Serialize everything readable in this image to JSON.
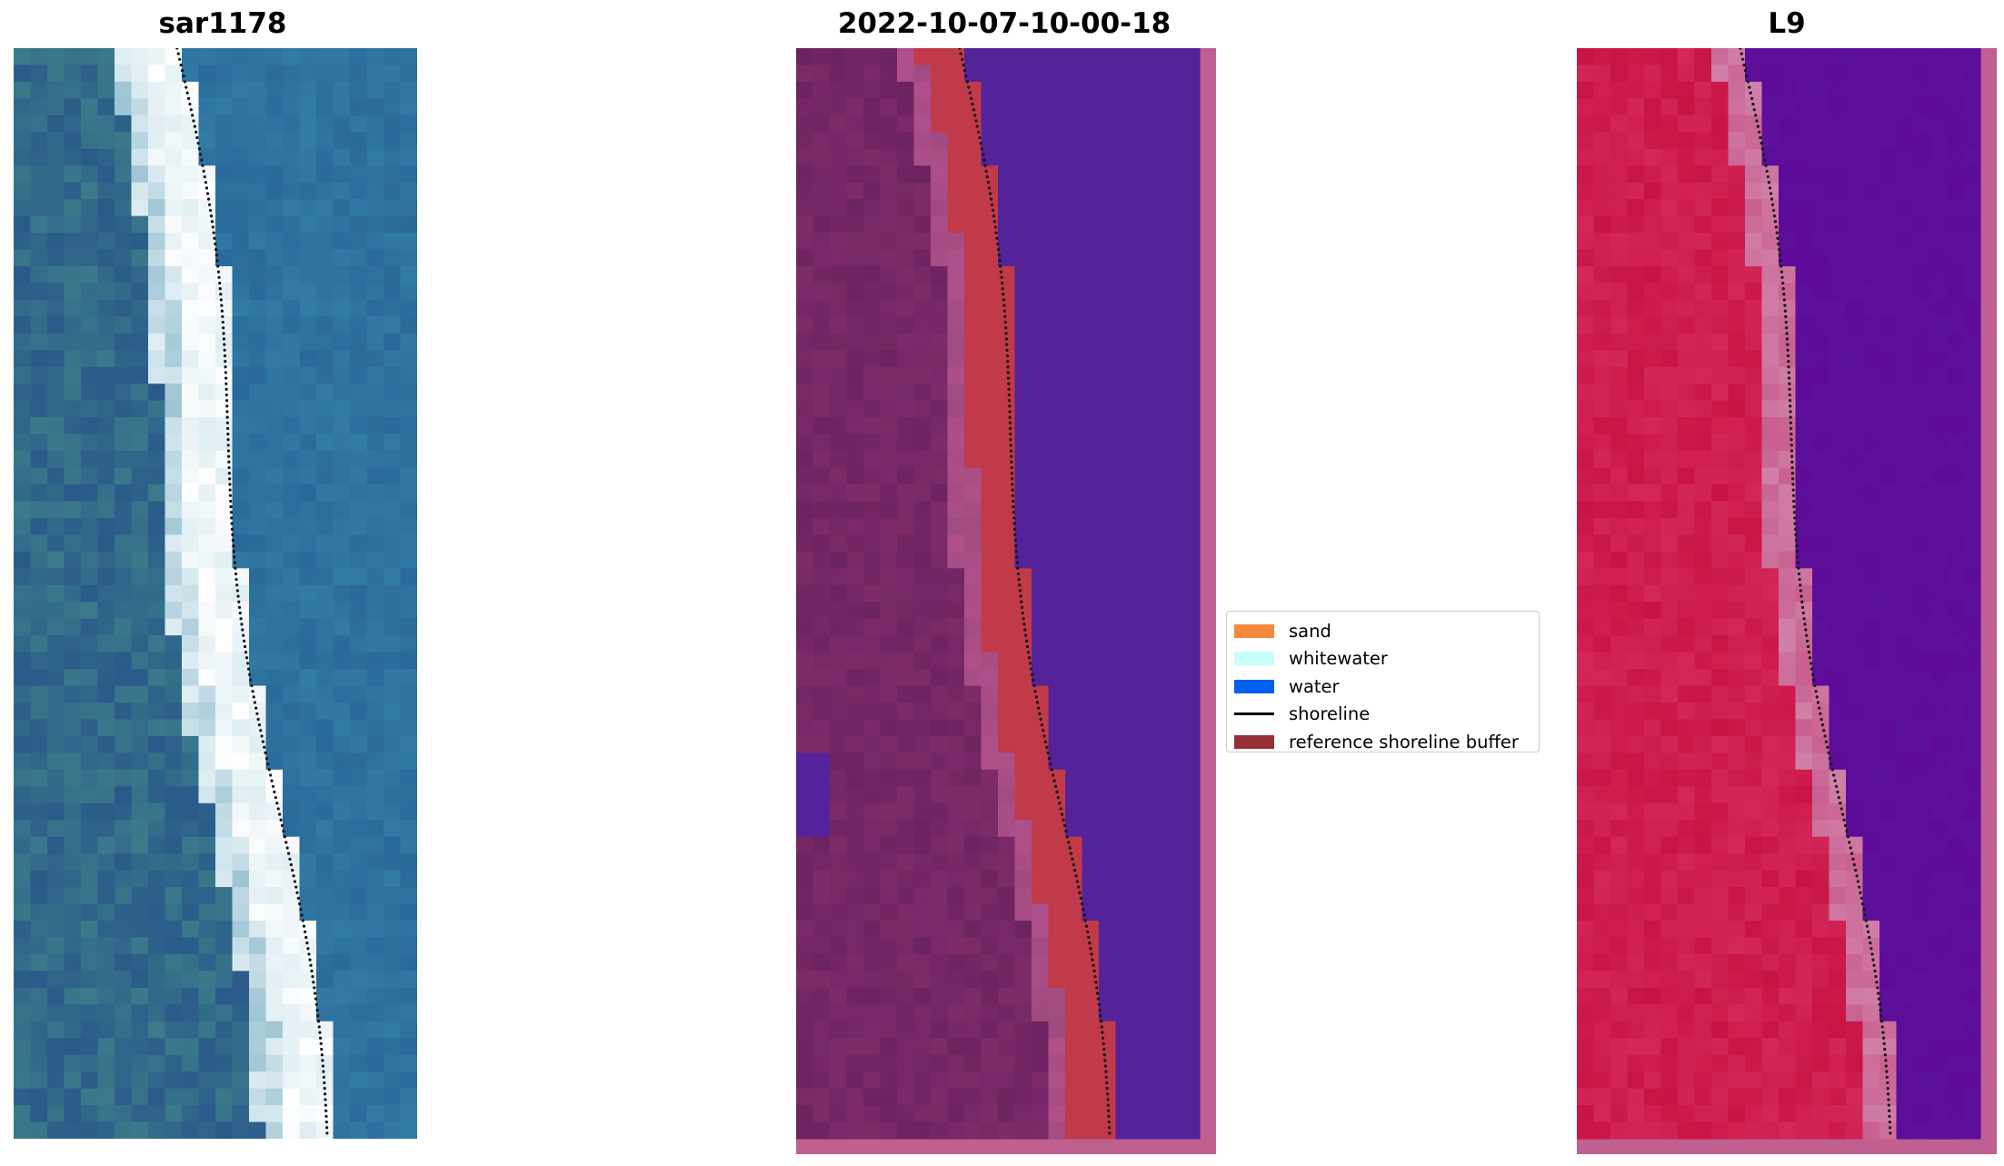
{
  "panels": [
    {
      "id": "rgb",
      "title": "sar1178"
    },
    {
      "id": "classified",
      "title": "2022-10-07-10-00-18"
    },
    {
      "id": "index",
      "title": "L9"
    }
  ],
  "legend": {
    "items": [
      {
        "label": "sand",
        "kind": "patch",
        "color": "#f5883c"
      },
      {
        "label": "whitewater",
        "kind": "patch",
        "color": "#c8fffa"
      },
      {
        "label": "water",
        "kind": "patch",
        "color": "#0060f0"
      },
      {
        "label": "shoreline",
        "kind": "line",
        "color": "#000000"
      },
      {
        "label": "reference shoreline buffer",
        "kind": "patch",
        "color": "#963036"
      }
    ]
  },
  "colors": {
    "rgb_sea": "#2a6a9a",
    "rgb_land": "#3a7a8a",
    "class_water": "#54239a",
    "class_land": "#6d2360",
    "class_buffer": "#c03a4a",
    "class_border": "#c06090",
    "index_water": "#5e0a9a",
    "index_land": "#c81445"
  }
}
